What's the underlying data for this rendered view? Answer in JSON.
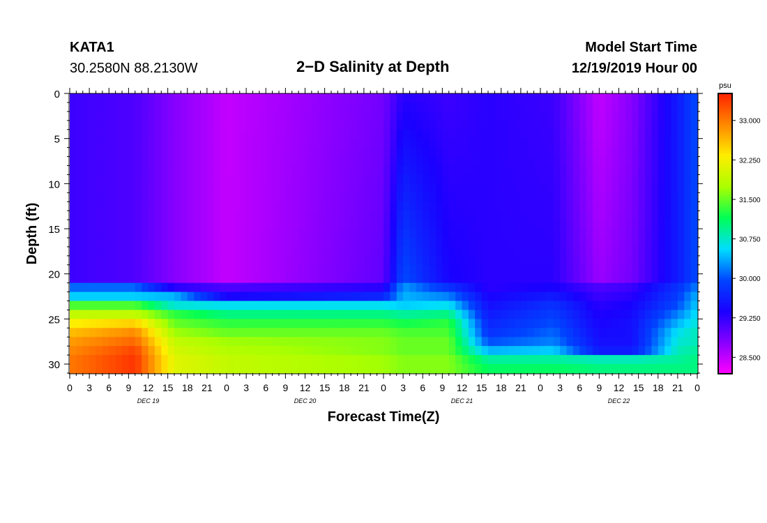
{
  "header": {
    "station_id": "KATA1",
    "coordinates": "30.2580N 88.2130W",
    "title": "2−D Salinity at Depth",
    "start_label": "Model Start Time",
    "start_value": "12/19/2019 Hour 00"
  },
  "chart_data": {
    "type": "heatmap",
    "title": "2−D Salinity at Depth",
    "xlabel": "Forecast Time(Z)",
    "ylabel": "Depth (ft)",
    "x_hours_range": [
      0,
      96
    ],
    "ylim": [
      0,
      31
    ],
    "y_ticks": [
      0,
      5,
      10,
      15,
      20,
      25,
      30
    ],
    "x_tick_hours": [
      0,
      3,
      6,
      9,
      12,
      15,
      18,
      21,
      24,
      27,
      30,
      33,
      36,
      39,
      42,
      45,
      48,
      51,
      54,
      57,
      60,
      63,
      66,
      69,
      72,
      75,
      78,
      81,
      84,
      87,
      90,
      93,
      96
    ],
    "x_tick_labels": [
      "0",
      "3",
      "6",
      "9",
      "12",
      "15",
      "18",
      "21",
      "0",
      "3",
      "6",
      "9",
      "12",
      "15",
      "18",
      "21",
      "0",
      "3",
      "6",
      "9",
      "12",
      "15",
      "18",
      "21",
      "0",
      "3",
      "6",
      "9",
      "12",
      "15",
      "18",
      "21",
      "0"
    ],
    "day_labels": [
      {
        "hour": 12,
        "label": "DEC 19"
      },
      {
        "hour": 36,
        "label": "DEC 20"
      },
      {
        "hour": 60,
        "label": "DEC 21"
      },
      {
        "hour": 84,
        "label": "DEC 22"
      }
    ],
    "colorbar": {
      "unit": "psu",
      "min": 28.2,
      "max": 33.5,
      "tick_values": [
        28.5,
        29.25,
        30.0,
        30.75,
        31.5,
        32.25,
        33.0
      ],
      "tick_labels": [
        "28.500",
        "29.250",
        "30.000",
        "30.750",
        "31.500",
        "32.250",
        "33.000"
      ],
      "colors": [
        "#ff00ff",
        "#8800ff",
        "#1a00ff",
        "#0044ff",
        "#00ddff",
        "#00ff55",
        "#aaff00",
        "#ffee00",
        "#ff8800",
        "#ff2200"
      ]
    },
    "salinity_profiles_psu": {
      "depths_ft": [
        0,
        20.5,
        21.5,
        22.5,
        23.5,
        24.5,
        25.5,
        26.5,
        27.5,
        28.5,
        29.5,
        30.5
      ],
      "series": [
        {
          "hour": 0,
          "values": [
            29.2,
            29.2,
            30.1,
            30.5,
            31.4,
            31.9,
            32.3,
            32.6,
            32.8,
            32.9,
            33.0,
            33.0
          ]
        },
        {
          "hour": 10,
          "values": [
            29.1,
            29.1,
            30.1,
            30.5,
            31.4,
            31.9,
            32.5,
            32.9,
            33.1,
            33.3,
            33.4,
            33.4
          ]
        },
        {
          "hour": 16,
          "values": [
            28.8,
            28.8,
            29.3,
            30.4,
            30.7,
            31.3,
            31.5,
            31.7,
            31.9,
            32.0,
            32.1,
            32.1
          ]
        },
        {
          "hour": 24,
          "values": [
            28.5,
            28.5,
            29.1,
            29.4,
            30.6,
            31.0,
            31.3,
            31.5,
            31.7,
            31.8,
            31.9,
            31.9
          ]
        },
        {
          "hour": 48,
          "values": [
            28.9,
            29.0,
            29.3,
            29.7,
            30.6,
            31.0,
            31.3,
            31.5,
            31.6,
            31.6,
            31.7,
            31.7
          ]
        },
        {
          "hour": 51,
          "values": [
            29.3,
            30.0,
            30.3,
            30.4,
            30.5,
            30.9,
            31.2,
            31.4,
            31.5,
            31.5,
            31.6,
            31.6
          ]
        },
        {
          "hour": 58,
          "values": [
            29.2,
            29.4,
            29.8,
            30.2,
            30.6,
            31.0,
            31.3,
            31.4,
            31.5,
            31.5,
            31.6,
            31.6
          ]
        },
        {
          "hour": 64,
          "values": [
            29.3,
            29.3,
            29.3,
            29.4,
            29.5,
            29.6,
            29.7,
            29.8,
            30.0,
            30.4,
            30.9,
            31.1
          ]
        },
        {
          "hour": 74,
          "values": [
            29.2,
            29.3,
            29.4,
            29.6,
            29.8,
            29.9,
            30.0,
            30.1,
            30.2,
            30.5,
            30.9,
            31.1
          ]
        },
        {
          "hour": 81,
          "values": [
            28.5,
            28.7,
            29.1,
            29.2,
            29.3,
            29.35,
            29.4,
            29.45,
            29.5,
            29.6,
            30.8,
            31.0
          ]
        },
        {
          "hour": 86,
          "values": [
            28.8,
            28.9,
            29.2,
            29.3,
            29.4,
            29.45,
            29.5,
            29.5,
            29.5,
            29.6,
            30.8,
            31.0
          ]
        },
        {
          "hour": 93,
          "values": [
            29.6,
            29.6,
            29.8,
            29.9,
            30.0,
            30.2,
            30.4,
            30.6,
            30.7,
            30.8,
            30.9,
            31.0
          ]
        },
        {
          "hour": 96,
          "values": [
            30.0,
            30.0,
            30.2,
            30.4,
            30.5,
            30.6,
            30.7,
            30.8,
            30.8,
            30.9,
            31.0,
            31.0
          ]
        }
      ]
    }
  }
}
